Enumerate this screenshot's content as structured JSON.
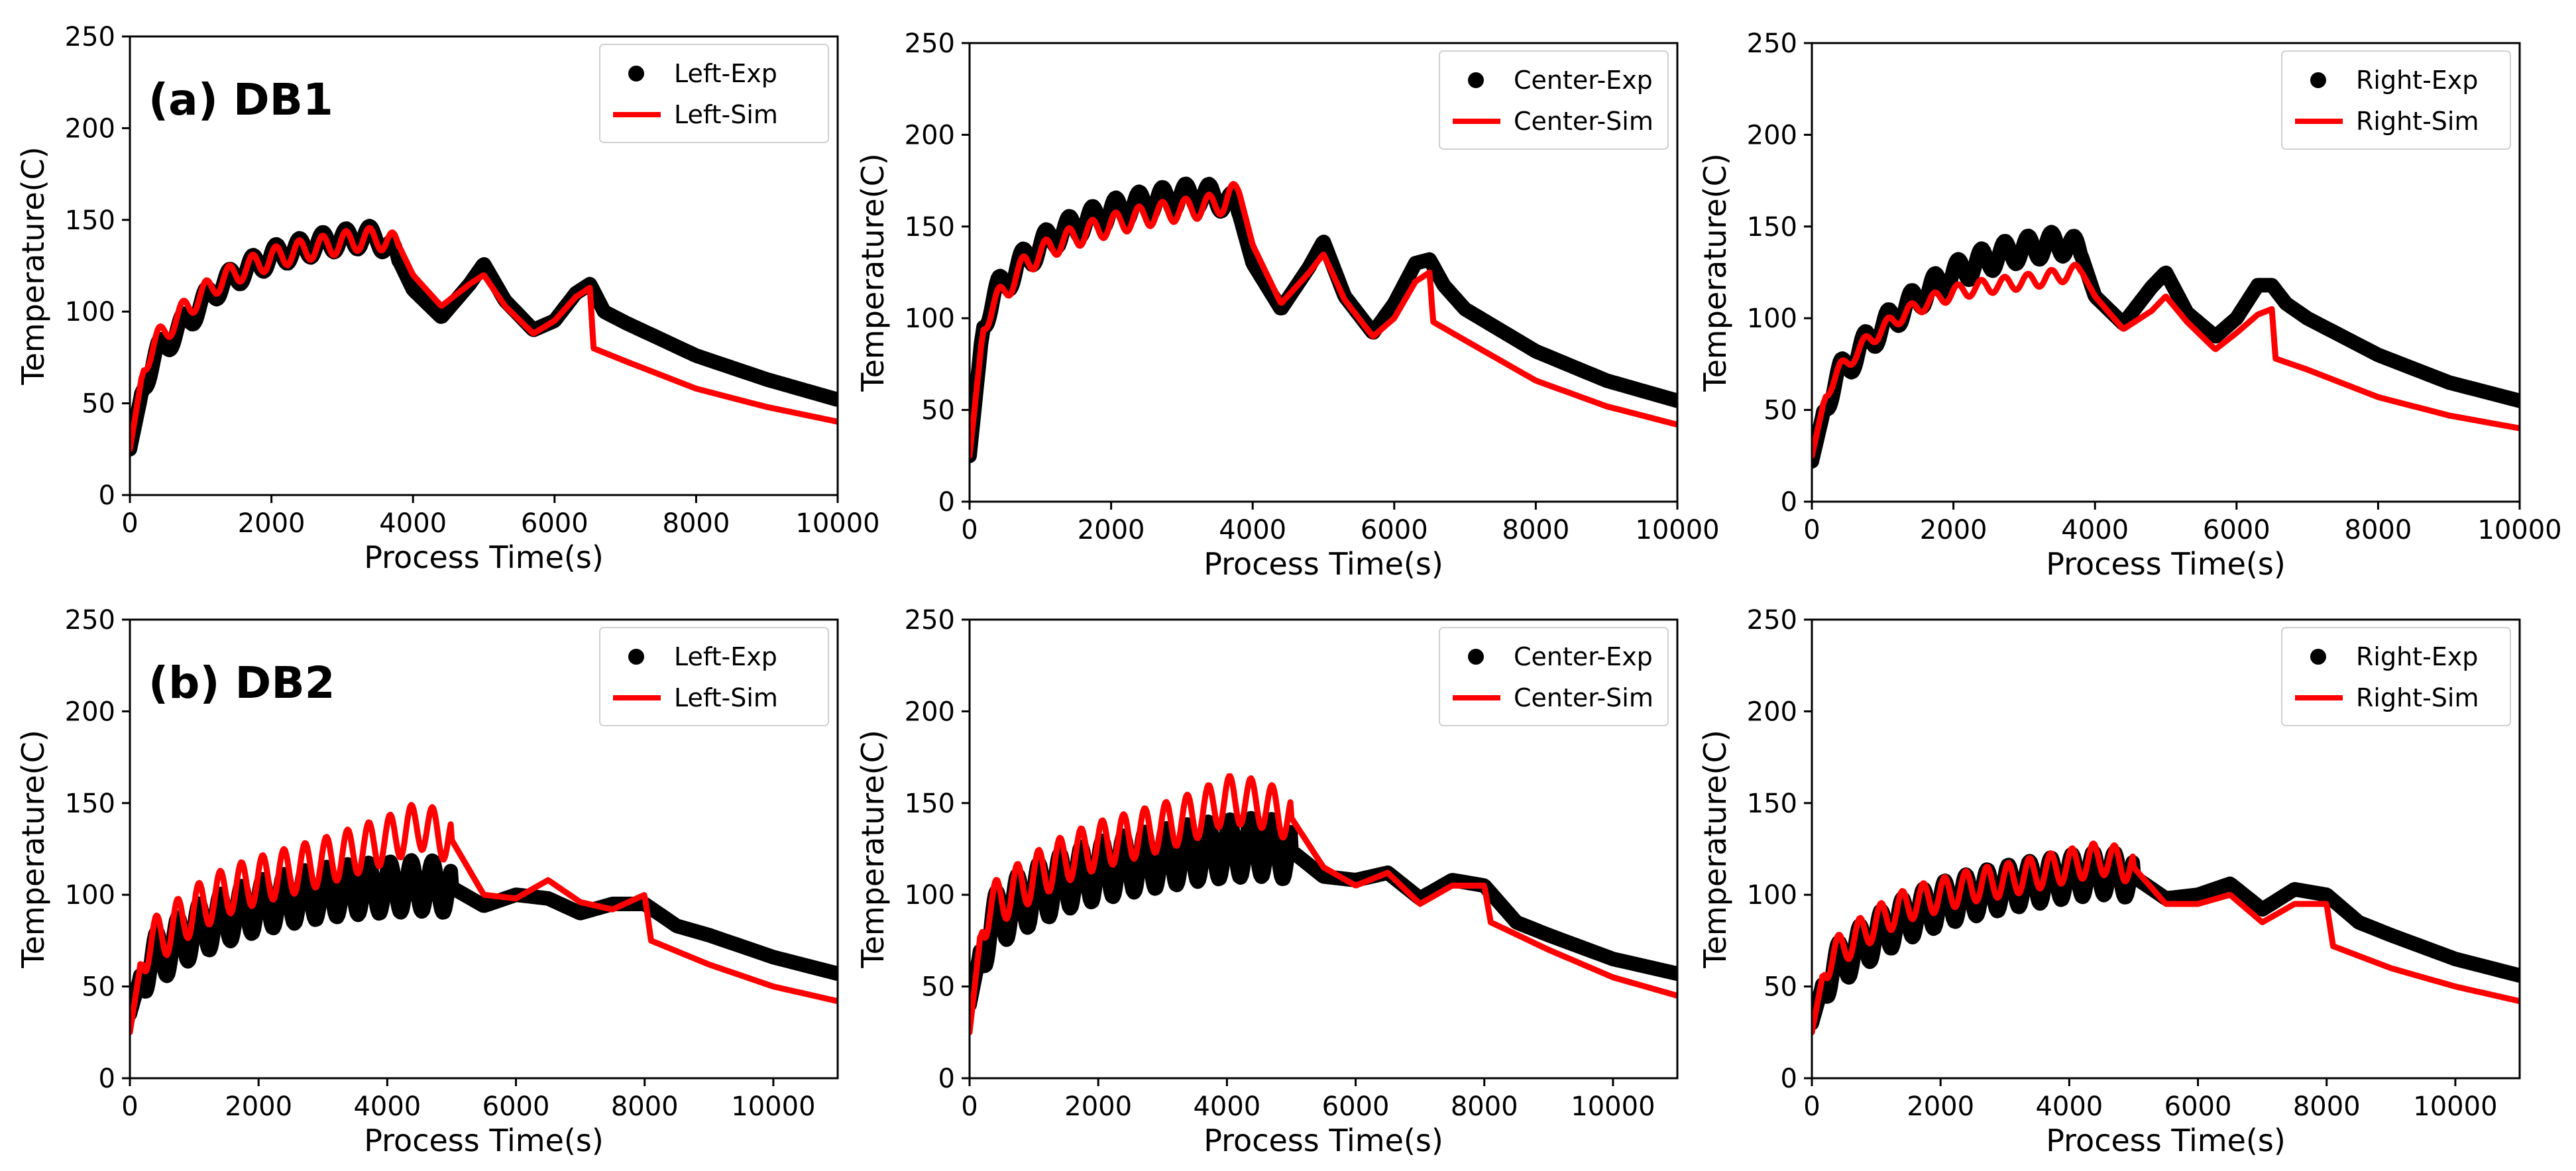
{
  "colors": {
    "exp": "#000000",
    "sim": "#ff0000"
  },
  "chart_data": [
    {
      "type": "line",
      "title": "(a) DB1",
      "xlabel": "Process Time(s)",
      "ylabel": "Temperature(C)",
      "xlim": [
        0,
        10000
      ],
      "ylim": [
        0,
        250
      ],
      "xticks": [
        0,
        2000,
        4000,
        6000,
        8000,
        10000
      ],
      "yticks": [
        0,
        50,
        100,
        150,
        200,
        250
      ],
      "legend_position": "top-right",
      "grid": false,
      "series": [
        {
          "name": "Left-Exp",
          "style": "markers",
          "envelope_amplitude": 6,
          "x": [
            0,
            200,
            400,
            800,
            1200,
            1600,
            2000,
            2400,
            2800,
            3200,
            3500,
            3800,
            4000,
            4400,
            4800,
            5000,
            5300,
            5700,
            6000,
            6300,
            6500,
            6700,
            7000,
            8000,
            9000,
            10000
          ],
          "y": [
            25,
            62,
            78,
            95,
            112,
            122,
            130,
            134,
            138,
            140,
            141,
            128,
            112,
            97,
            115,
            126,
            106,
            90,
            95,
            110,
            115,
            100,
            94,
            76,
            63,
            52
          ]
        },
        {
          "name": "Left-Sim",
          "style": "line",
          "envelope_amplitude": 6,
          "x": [
            0,
            200,
            400,
            800,
            1200,
            1600,
            2000,
            2400,
            2800,
            3200,
            3500,
            3800,
            4000,
            4400,
            4800,
            5000,
            5300,
            5700,
            6000,
            6300,
            6500,
            6550,
            7000,
            8000,
            9000,
            10000
          ],
          "y": [
            25,
            72,
            85,
            102,
            115,
            123,
            129,
            133,
            136,
            139,
            140,
            136,
            120,
            103,
            115,
            120,
            103,
            88,
            95,
            108,
            113,
            80,
            73,
            58,
            48,
            40
          ]
        }
      ]
    },
    {
      "type": "line",
      "title": "",
      "xlabel": "Process Time(s)",
      "ylabel": "Temperature(C)",
      "xlim": [
        0,
        10000
      ],
      "ylim": [
        0,
        250
      ],
      "xticks": [
        0,
        2000,
        4000,
        6000,
        8000,
        10000
      ],
      "yticks": [
        0,
        50,
        100,
        150,
        200,
        250
      ],
      "legend_position": "top-right",
      "grid": false,
      "series": [
        {
          "name": "Center-Exp",
          "style": "markers",
          "envelope_amplitude": 7,
          "x": [
            0,
            200,
            400,
            800,
            1200,
            1600,
            2000,
            2400,
            2800,
            3200,
            3600,
            3800,
            4000,
            4400,
            4800,
            5000,
            5300,
            5700,
            6000,
            6300,
            6500,
            6700,
            7000,
            8000,
            9000,
            10000
          ],
          "y": [
            25,
            100,
            115,
            133,
            145,
            152,
            158,
            162,
            165,
            167,
            165,
            158,
            130,
            105,
            128,
            142,
            112,
            92,
            108,
            130,
            132,
            118,
            105,
            82,
            66,
            55
          ]
        },
        {
          "name": "Center-Sim",
          "style": "line",
          "envelope_amplitude": 6,
          "x": [
            0,
            200,
            400,
            800,
            1200,
            1600,
            2000,
            2400,
            2800,
            3200,
            3600,
            3800,
            4000,
            4400,
            4800,
            5000,
            5300,
            5700,
            6000,
            6300,
            6500,
            6550,
            7000,
            8000,
            9000,
            10000
          ],
          "y": [
            25,
            98,
            110,
            130,
            140,
            146,
            151,
            155,
            158,
            160,
            163,
            170,
            140,
            108,
            125,
            135,
            110,
            90,
            100,
            120,
            125,
            98,
            88,
            66,
            52,
            42
          ]
        }
      ]
    },
    {
      "type": "line",
      "title": "",
      "xlabel": "Process Time(s)",
      "ylabel": "Temperature(C)",
      "xlim": [
        0,
        10000
      ],
      "ylim": [
        0,
        250
      ],
      "xticks": [
        0,
        2000,
        4000,
        6000,
        8000,
        10000
      ],
      "yticks": [
        0,
        50,
        100,
        150,
        200,
        250
      ],
      "legend_position": "top-right",
      "grid": false,
      "series": [
        {
          "name": "Right-Exp",
          "style": "markers",
          "envelope_amplitude": 7,
          "x": [
            0,
            200,
            400,
            800,
            1200,
            1600,
            2000,
            2400,
            2800,
            3200,
            3600,
            3800,
            4000,
            4400,
            4800,
            5000,
            5300,
            5700,
            6000,
            6300,
            6500,
            6700,
            7000,
            8000,
            9000,
            10000
          ],
          "y": [
            22,
            55,
            70,
            88,
            102,
            114,
            124,
            131,
            136,
            139,
            141,
            135,
            112,
            97,
            117,
            125,
            103,
            90,
            100,
            118,
            118,
            108,
            100,
            80,
            65,
            55
          ]
        },
        {
          "name": "Right-Sim",
          "style": "line",
          "envelope_amplitude": 4,
          "x": [
            0,
            200,
            400,
            800,
            1200,
            1600,
            2000,
            2400,
            2800,
            3200,
            3600,
            3800,
            4000,
            4400,
            4800,
            5000,
            5300,
            5700,
            6000,
            6300,
            6500,
            6550,
            7000,
            8000,
            9000,
            10000
          ],
          "y": [
            25,
            60,
            72,
            88,
            100,
            108,
            114,
            117,
            119,
            121,
            124,
            126,
            112,
            94,
            104,
            112,
            98,
            83,
            92,
            102,
            105,
            78,
            72,
            57,
            47,
            40
          ]
        }
      ]
    },
    {
      "type": "line",
      "title": "(b) DB2",
      "xlabel": "Process Time(s)",
      "ylabel": "Temperature(C)",
      "xlim": [
        0,
        11000
      ],
      "ylim": [
        0,
        250
      ],
      "xticks": [
        0,
        2000,
        4000,
        6000,
        8000,
        10000
      ],
      "yticks": [
        0,
        50,
        100,
        150,
        200,
        250
      ],
      "legend_position": "top-right",
      "grid": false,
      "series": [
        {
          "name": "Left-Exp",
          "style": "markers",
          "envelope_amplitude": 14,
          "x": [
            0,
            200,
            500,
            1000,
            1500,
            2000,
            2500,
            3000,
            3500,
            4000,
            4500,
            5000,
            5500,
            6000,
            6500,
            7000,
            7500,
            8000,
            8500,
            9000,
            10000,
            11000
          ],
          "y": [
            35,
            60,
            68,
            80,
            88,
            94,
            98,
            101,
            103,
            104,
            105,
            104,
            94,
            100,
            98,
            90,
            95,
            95,
            83,
            78,
            66,
            57
          ]
        },
        {
          "name": "Left-Sim",
          "style": "line",
          "envelope_amplitude": 13,
          "x": [
            0,
            200,
            500,
            1000,
            1500,
            2000,
            2500,
            3000,
            3500,
            4000,
            4500,
            5000,
            5500,
            6000,
            6500,
            7000,
            7500,
            8000,
            8100,
            9000,
            10000,
            11000
          ],
          "y": [
            25,
            70,
            78,
            92,
            102,
            108,
            113,
            118,
            124,
            130,
            138,
            130,
            100,
            98,
            108,
            96,
            92,
            100,
            75,
            62,
            50,
            42
          ]
        }
      ]
    },
    {
      "type": "line",
      "title": "",
      "xlabel": "Process Time(s)",
      "ylabel": "Temperature(C)",
      "xlim": [
        0,
        11000
      ],
      "ylim": [
        0,
        250
      ],
      "xticks": [
        0,
        2000,
        4000,
        6000,
        8000,
        10000
      ],
      "yticks": [
        0,
        50,
        100,
        150,
        200,
        250
      ],
      "legend_position": "top-right",
      "grid": false,
      "series": [
        {
          "name": "Center-Exp",
          "style": "markers",
          "envelope_amplitude": 16,
          "x": [
            0,
            200,
            500,
            1000,
            1500,
            2000,
            2500,
            3000,
            3500,
            4000,
            4500,
            5000,
            5500,
            6000,
            6500,
            7000,
            7500,
            8000,
            8500,
            9000,
            10000,
            11000
          ],
          "y": [
            40,
            75,
            90,
            100,
            108,
            113,
            117,
            120,
            123,
            125,
            126,
            124,
            110,
            108,
            112,
            98,
            108,
            105,
            85,
            78,
            65,
            57
          ]
        },
        {
          "name": "Center-Sim",
          "style": "line",
          "envelope_amplitude": 13,
          "x": [
            0,
            200,
            500,
            1000,
            1500,
            2000,
            2500,
            3000,
            3500,
            4000,
            4500,
            5000,
            5500,
            6000,
            6500,
            7000,
            7500,
            8000,
            8100,
            9000,
            10000,
            11000
          ],
          "y": [
            25,
            88,
            98,
            110,
            120,
            127,
            132,
            137,
            143,
            152,
            150,
            142,
            115,
            105,
            112,
            95,
            105,
            105,
            85,
            70,
            55,
            45
          ]
        }
      ]
    },
    {
      "type": "line",
      "title": "",
      "xlabel": "Process Time(s)",
      "ylabel": "Temperature(C)",
      "xlim": [
        0,
        11000
      ],
      "ylim": [
        0,
        250
      ],
      "xticks": [
        0,
        2000,
        4000,
        6000,
        8000,
        10000
      ],
      "yticks": [
        0,
        50,
        100,
        150,
        200,
        250
      ],
      "legend_position": "top-right",
      "grid": false,
      "series": [
        {
          "name": "Right-Exp",
          "style": "markers",
          "envelope_amplitude": 12,
          "x": [
            0,
            200,
            500,
            1000,
            1500,
            2000,
            2500,
            3000,
            3500,
            4000,
            4500,
            5000,
            5500,
            6000,
            6500,
            7000,
            7500,
            8000,
            8500,
            9000,
            10000,
            11000
          ],
          "y": [
            30,
            55,
            65,
            78,
            88,
            95,
            100,
            104,
            107,
            110,
            112,
            110,
            98,
            100,
            106,
            92,
            103,
            100,
            85,
            78,
            65,
            56
          ]
        },
        {
          "name": "Right-Sim",
          "style": "line",
          "envelope_amplitude": 9,
          "x": [
            0,
            200,
            500,
            1000,
            1500,
            2000,
            2500,
            3000,
            3500,
            4000,
            4500,
            5000,
            5500,
            6000,
            6500,
            7000,
            7500,
            8000,
            8100,
            9000,
            10000,
            11000
          ],
          "y": [
            25,
            62,
            72,
            85,
            95,
            100,
            105,
            108,
            112,
            116,
            120,
            115,
            95,
            95,
            100,
            85,
            95,
            95,
            72,
            60,
            50,
            42
          ]
        }
      ]
    }
  ]
}
